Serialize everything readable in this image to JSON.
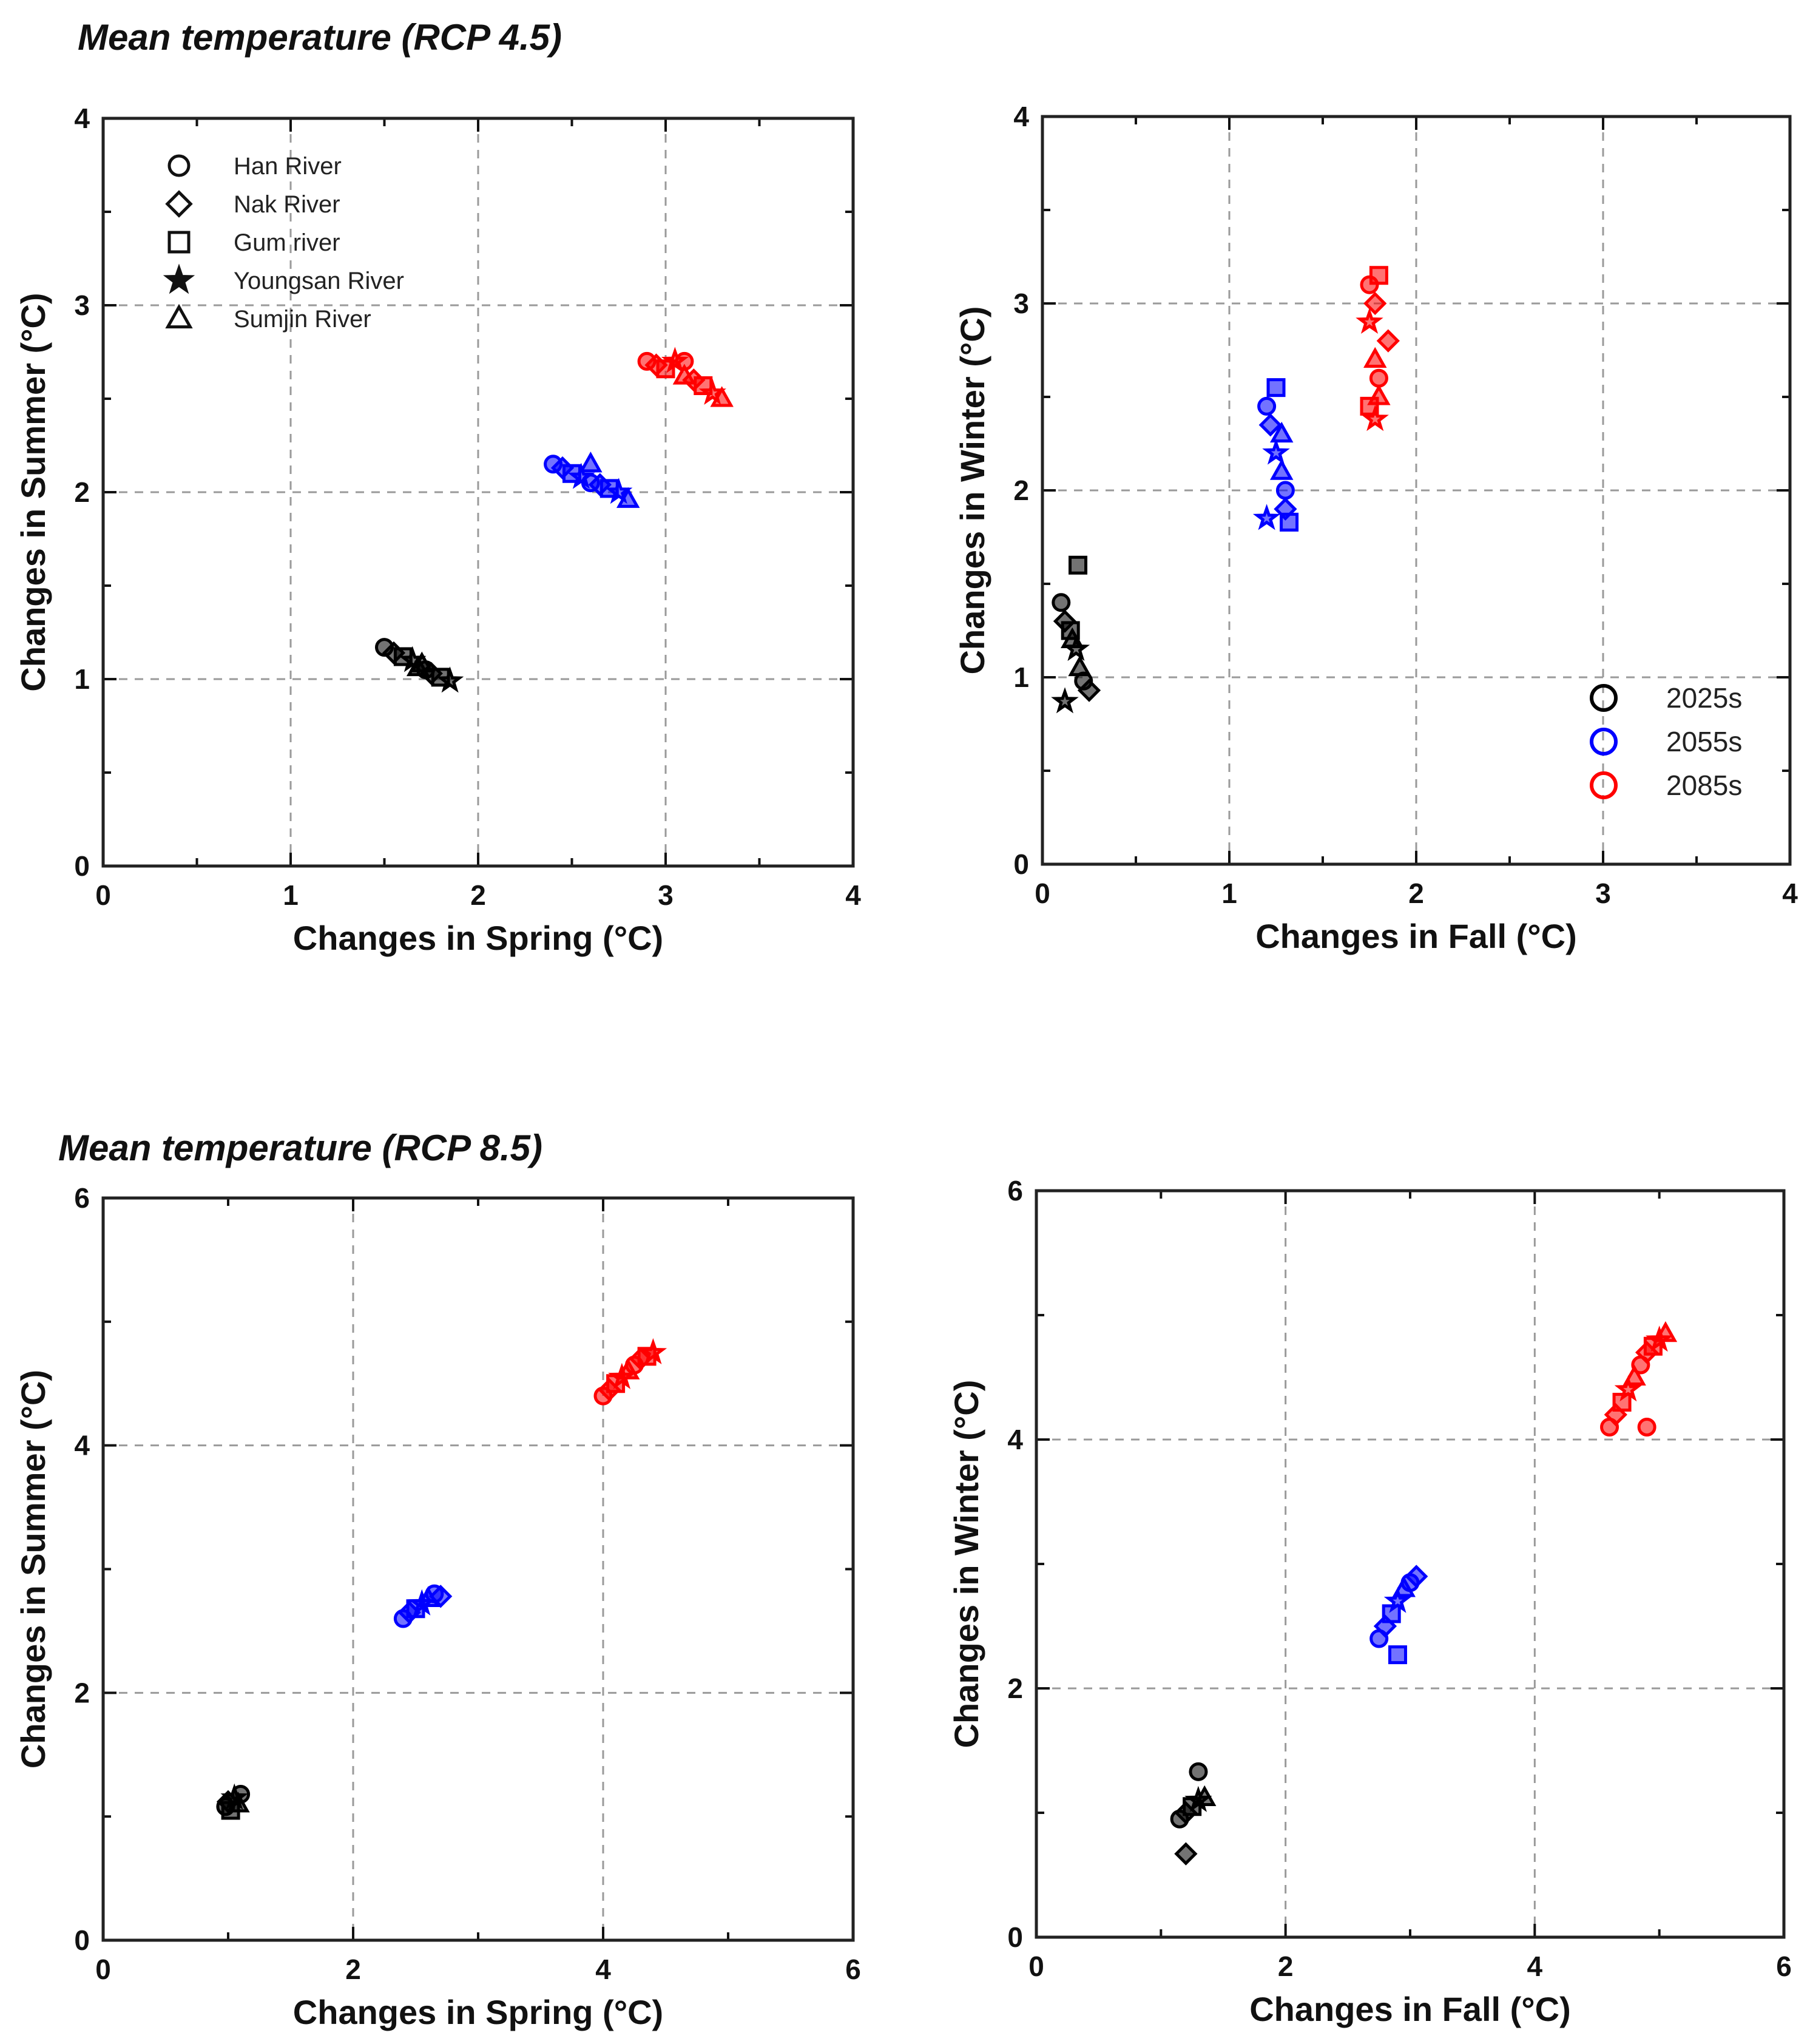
{
  "titles": [
    "Mean temperature (RCP 4.5)",
    "Mean temperature (RCP 8.5)"
  ],
  "colors": {
    "2025s": "#000000",
    "2055s": "#0000ff",
    "2085s": "#ff0000"
  },
  "river_legend": [
    {
      "label": "Han River",
      "marker": "circle"
    },
    {
      "label": "Nak River",
      "marker": "diamond"
    },
    {
      "label": "Gum river",
      "marker": "square"
    },
    {
      "label": "Youngsan River",
      "marker": "star"
    },
    {
      "label": "Sumjin River",
      "marker": "triangle"
    }
  ],
  "period_legend": [
    {
      "label": "2025s",
      "color": "#000000"
    },
    {
      "label": "2055s",
      "color": "#0000ff"
    },
    {
      "label": "2085s",
      "color": "#ff0000"
    }
  ],
  "chart_data": [
    {
      "type": "scatter",
      "title": "Mean temperature (RCP 4.5)",
      "xlabel": "Changes in Spring (°C)",
      "ylabel": "Changes in Summer (°C)",
      "xlim": [
        0,
        4
      ],
      "ylim": [
        0,
        4
      ],
      "xticks": [
        0,
        1,
        2,
        3,
        4
      ],
      "yticks": [
        0,
        1,
        2,
        3,
        4
      ],
      "grid": true,
      "legend": "rivers",
      "series": [
        {
          "name": "2025s",
          "color": "#000000",
          "points": [
            [
              1.5,
              1.17
            ],
            [
              1.55,
              1.14
            ],
            [
              1.6,
              1.12
            ],
            [
              1.65,
              1.1
            ],
            [
              1.7,
              1.08
            ],
            [
              1.72,
              1.05
            ],
            [
              1.75,
              1.03
            ],
            [
              1.8,
              1.01
            ],
            [
              1.85,
              0.99
            ],
            [
              1.68,
              1.06
            ]
          ]
        },
        {
          "name": "2055s",
          "color": "#0000ff",
          "points": [
            [
              2.4,
              2.15
            ],
            [
              2.45,
              2.13
            ],
            [
              2.5,
              2.1
            ],
            [
              2.55,
              2.08
            ],
            [
              2.6,
              2.15
            ],
            [
              2.6,
              2.05
            ],
            [
              2.65,
              2.04
            ],
            [
              2.7,
              2.02
            ],
            [
              2.75,
              2.0
            ],
            [
              2.8,
              1.96
            ]
          ]
        },
        {
          "name": "2085s",
          "color": "#ff0000",
          "points": [
            [
              2.9,
              2.7
            ],
            [
              2.95,
              2.68
            ],
            [
              3.0,
              2.66
            ],
            [
              3.05,
              2.7
            ],
            [
              3.1,
              2.62
            ],
            [
              3.1,
              2.7
            ],
            [
              3.15,
              2.6
            ],
            [
              3.2,
              2.57
            ],
            [
              3.25,
              2.53
            ],
            [
              3.3,
              2.5
            ]
          ]
        }
      ]
    },
    {
      "type": "scatter",
      "title": "",
      "xlabel": "Changes in Fall (°C)",
      "ylabel": "Changes in Winter (°C)",
      "xlim": [
        0,
        4
      ],
      "ylim": [
        0,
        4
      ],
      "xticks": [
        0,
        1,
        2,
        3,
        4
      ],
      "yticks": [
        0,
        1,
        2,
        3,
        4
      ],
      "grid": true,
      "legend": "periods",
      "series": [
        {
          "name": "2025s",
          "color": "#000000",
          "points": [
            [
              0.1,
              1.4
            ],
            [
              0.12,
              1.3
            ],
            [
              0.15,
              1.25
            ],
            [
              0.18,
              1.15
            ],
            [
              0.2,
              1.05
            ],
            [
              0.22,
              0.98
            ],
            [
              0.25,
              0.93
            ],
            [
              0.19,
              1.6
            ],
            [
              0.12,
              0.87
            ],
            [
              0.16,
              1.2
            ]
          ]
        },
        {
          "name": "2055s",
          "color": "#0000ff",
          "points": [
            [
              1.2,
              2.45
            ],
            [
              1.22,
              2.35
            ],
            [
              1.25,
              2.55
            ],
            [
              1.25,
              2.2
            ],
            [
              1.28,
              2.1
            ],
            [
              1.3,
              2.0
            ],
            [
              1.3,
              1.9
            ],
            [
              1.32,
              1.83
            ],
            [
              1.2,
              1.85
            ],
            [
              1.28,
              2.3
            ]
          ]
        },
        {
          "name": "2085s",
          "color": "#ff0000",
          "points": [
            [
              1.75,
              3.1
            ],
            [
              1.78,
              3.0
            ],
            [
              1.8,
              3.15
            ],
            [
              1.75,
              2.9
            ],
            [
              1.78,
              2.7
            ],
            [
              1.8,
              2.6
            ],
            [
              1.85,
              2.8
            ],
            [
              1.75,
              2.45
            ],
            [
              1.78,
              2.38
            ],
            [
              1.8,
              2.5
            ]
          ]
        }
      ]
    },
    {
      "type": "scatter",
      "title": "Mean temperature (RCP 8.5)",
      "xlabel": "Changes in Spring (°C)",
      "ylabel": "Changes in Summer (°C)",
      "xlim": [
        0,
        6
      ],
      "ylim": [
        0,
        6
      ],
      "xticks": [
        0,
        2,
        4,
        6
      ],
      "yticks": [
        0,
        2,
        4,
        6
      ],
      "grid": true,
      "legend": "none",
      "series": [
        {
          "name": "2025s",
          "color": "#000000",
          "points": [
            [
              0.98,
              1.08
            ],
            [
              1.0,
              1.12
            ],
            [
              1.02,
              1.05
            ],
            [
              1.05,
              1.15
            ],
            [
              1.08,
              1.1
            ],
            [
              1.1,
              1.18
            ]
          ]
        },
        {
          "name": "2055s",
          "color": "#0000ff",
          "points": [
            [
              2.4,
              2.6
            ],
            [
              2.45,
              2.65
            ],
            [
              2.5,
              2.68
            ],
            [
              2.55,
              2.72
            ],
            [
              2.6,
              2.76
            ],
            [
              2.65,
              2.8
            ],
            [
              2.7,
              2.78
            ]
          ]
        },
        {
          "name": "2085s",
          "color": "#ff0000",
          "points": [
            [
              4.0,
              4.4
            ],
            [
              4.05,
              4.45
            ],
            [
              4.1,
              4.5
            ],
            [
              4.15,
              4.55
            ],
            [
              4.2,
              4.6
            ],
            [
              4.25,
              4.65
            ],
            [
              4.3,
              4.7
            ],
            [
              4.35,
              4.72
            ],
            [
              4.4,
              4.75
            ]
          ]
        }
      ]
    },
    {
      "type": "scatter",
      "title": "",
      "xlabel": "Changes in Fall (°C)",
      "ylabel": "Changes in Winter (°C)",
      "xlim": [
        0,
        6
      ],
      "ylim": [
        0,
        6
      ],
      "xticks": [
        0,
        2,
        4,
        6
      ],
      "yticks": [
        0,
        2,
        4,
        6
      ],
      "grid": true,
      "legend": "none",
      "series": [
        {
          "name": "2025s",
          "color": "#000000",
          "points": [
            [
              1.15,
              0.95
            ],
            [
              1.2,
              1.0
            ],
            [
              1.25,
              1.05
            ],
            [
              1.3,
              1.1
            ],
            [
              1.35,
              1.12
            ],
            [
              1.3,
              1.33
            ],
            [
              1.2,
              0.67
            ]
          ]
        },
        {
          "name": "2055s",
          "color": "#0000ff",
          "points": [
            [
              2.75,
              2.4
            ],
            [
              2.8,
              2.5
            ],
            [
              2.85,
              2.6
            ],
            [
              2.9,
              2.7
            ],
            [
              2.95,
              2.8
            ],
            [
              3.0,
              2.85
            ],
            [
              3.05,
              2.9
            ],
            [
              2.9,
              2.27
            ]
          ]
        },
        {
          "name": "2085s",
          "color": "#ff0000",
          "points": [
            [
              4.6,
              4.1
            ],
            [
              4.65,
              4.2
            ],
            [
              4.7,
              4.3
            ],
            [
              4.75,
              4.4
            ],
            [
              4.8,
              4.5
            ],
            [
              4.85,
              4.6
            ],
            [
              4.9,
              4.7
            ],
            [
              4.95,
              4.75
            ],
            [
              5.0,
              4.8
            ],
            [
              5.05,
              4.85
            ],
            [
              4.9,
              4.1
            ]
          ]
        }
      ]
    }
  ]
}
